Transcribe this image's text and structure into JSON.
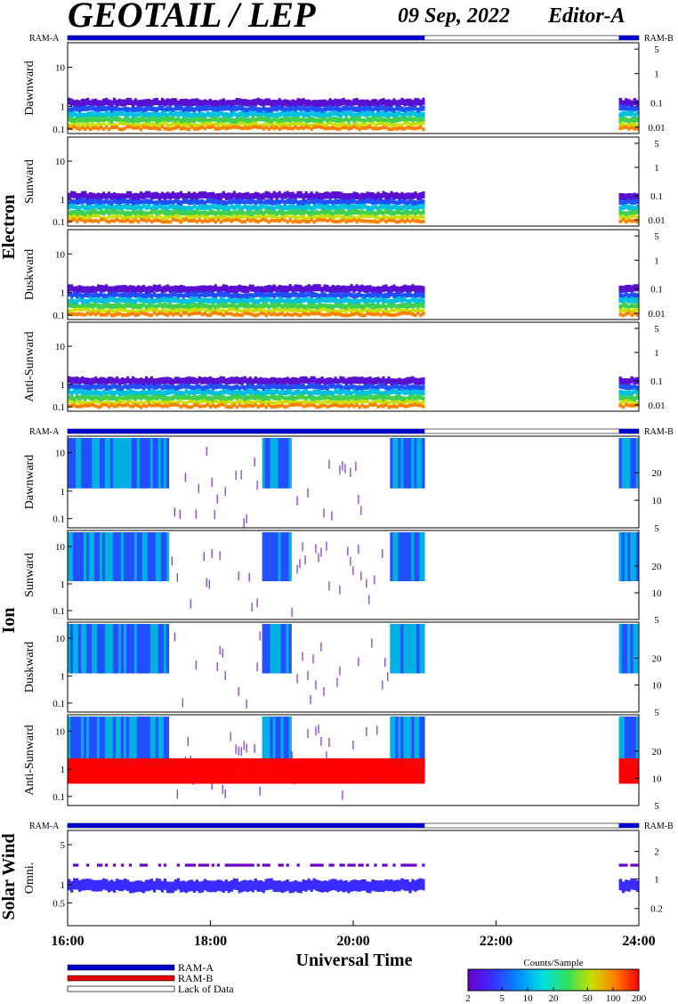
{
  "header": {
    "title": "GEOTAIL / LEP",
    "date": "09 Sep, 2022",
    "editor": "Editor-A"
  },
  "chart_data": {
    "type": "heatmap",
    "x_axis": {
      "label": "Universal Time",
      "ticks": [
        "16:00",
        "18:00",
        "20:00",
        "22:00",
        "24:00"
      ],
      "range_hours": [
        16,
        24
      ]
    },
    "data_coverage": {
      "segments_hours": [
        [
          16.0,
          21.0
        ],
        [
          23.72,
          24.0
        ]
      ],
      "gap_hours": [
        21.0,
        23.72
      ]
    },
    "ram_labels": {
      "left": "RAM-A",
      "right": "RAM-B"
    },
    "groups": [
      {
        "name": "Electron",
        "panels": [
          {
            "label": "Dawnward",
            "left_ticks": [
              "10",
              "1",
              "0.1"
            ],
            "right_ticks": [
              "5",
              "1",
              "0.1",
              "0.01"
            ]
          },
          {
            "label": "Sunward",
            "left_ticks": [
              "10",
              "1",
              "0.1"
            ],
            "right_ticks": [
              "5",
              "1",
              "0.1",
              "0.01"
            ]
          },
          {
            "label": "Duskward",
            "left_ticks": [
              "10",
              "1",
              "0.1"
            ],
            "right_ticks": [
              "5",
              "1",
              "0.1",
              "0.01"
            ]
          },
          {
            "label": "Anti-Sunward",
            "left_ticks": [
              "10",
              "1",
              "0.1"
            ],
            "right_ticks": [
              "5",
              "1",
              "0.1",
              "0.01"
            ]
          }
        ]
      },
      {
        "name": "Ion",
        "panels": [
          {
            "label": "Dawnward",
            "left_ticks": [
              "10",
              "1",
              "0.1"
            ],
            "right_ticks": [
              "20",
              "10",
              "5"
            ]
          },
          {
            "label": "Sunward",
            "left_ticks": [
              "10",
              "1",
              "0.1"
            ],
            "right_ticks": [
              "20",
              "10",
              "5"
            ]
          },
          {
            "label": "Duskward",
            "left_ticks": [
              "10",
              "1",
              "0.1"
            ],
            "right_ticks": [
              "20",
              "10",
              "5"
            ]
          },
          {
            "label": "Anti-Sunward",
            "left_ticks": [
              "10",
              "1",
              "0.1"
            ],
            "right_ticks": [
              "20",
              "10",
              "5"
            ]
          }
        ]
      },
      {
        "name": "Solar Wind",
        "panels": [
          {
            "label": "Omni.",
            "left_ticks": [
              "5",
              "1",
              "0.5"
            ],
            "right_ticks": [
              "2",
              "1",
              "0.2"
            ]
          }
        ]
      }
    ],
    "legend": {
      "items": [
        {
          "label": "RAM-A",
          "color": "#0000cc"
        },
        {
          "label": "RAM-B",
          "color": "#e00000"
        },
        {
          "label": "Lack of Data",
          "color": "#ffffff"
        }
      ]
    },
    "colorbar": {
      "title": "Counts/Sample",
      "ticks": [
        "2",
        "5",
        "10",
        "20",
        "50",
        "100",
        "200"
      ],
      "colors": [
        "#6a00c8",
        "#3a2cff",
        "#0090ff",
        "#00e0e0",
        "#30e060",
        "#c8e000",
        "#ff8000",
        "#ff0000"
      ]
    }
  }
}
